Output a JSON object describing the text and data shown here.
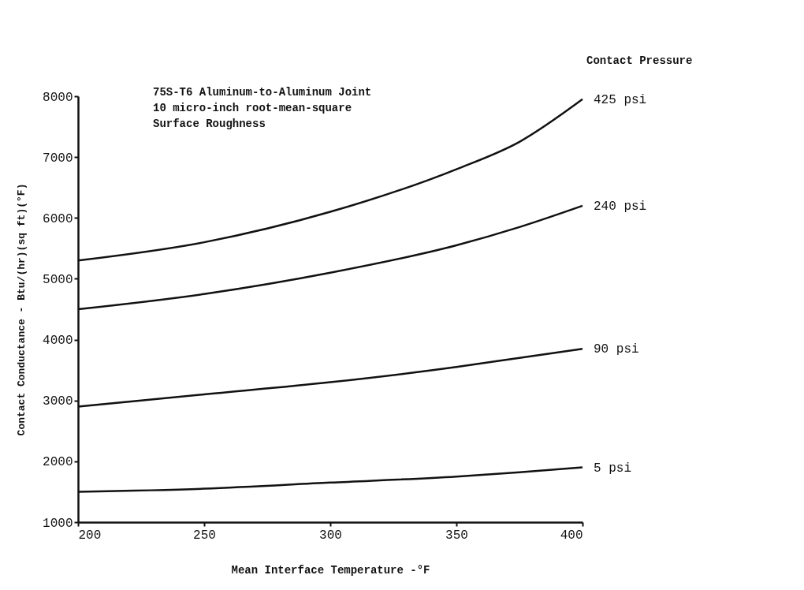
{
  "chart_data": {
    "type": "line",
    "xlabel": "Mean Interface Temperature -°F",
    "ylabel": "Contact Conductance - Btu/(hr)(sq ft)(°F)",
    "legend_title": "Contact Pressure",
    "annotations": [
      "75S-T6 Aluminum-to-Aluminum Joint",
      "10 micro-inch root-mean-square",
      "Surface Roughness"
    ],
    "x": [
      200,
      250,
      300,
      350,
      375,
      400
    ],
    "series": [
      {
        "name": "425 psi",
        "color": "#111111",
        "values": [
          5300,
          5600,
          6100,
          6800,
          7250,
          7950
        ]
      },
      {
        "name": "240 psi",
        "color": "#111111",
        "values": [
          4500,
          4750,
          5100,
          5550,
          5850,
          6200
        ]
      },
      {
        "name": "90 psi",
        "color": "#111111",
        "values": [
          2900,
          3100,
          3300,
          3550,
          3700,
          3850
        ]
      },
      {
        "name": "5 psi",
        "color": "#111111",
        "values": [
          1500,
          1550,
          1650,
          1750,
          1820,
          1900
        ]
      }
    ],
    "xlim": [
      200,
      400
    ],
    "xticks": [
      200,
      250,
      300,
      350,
      400
    ],
    "ylim": [
      1000,
      8000
    ],
    "yticks": [
      1000,
      2000,
      3000,
      4000,
      5000,
      6000,
      7000,
      8000
    ],
    "grid": false,
    "legend": false,
    "marker": "none",
    "line_style": "solid"
  }
}
